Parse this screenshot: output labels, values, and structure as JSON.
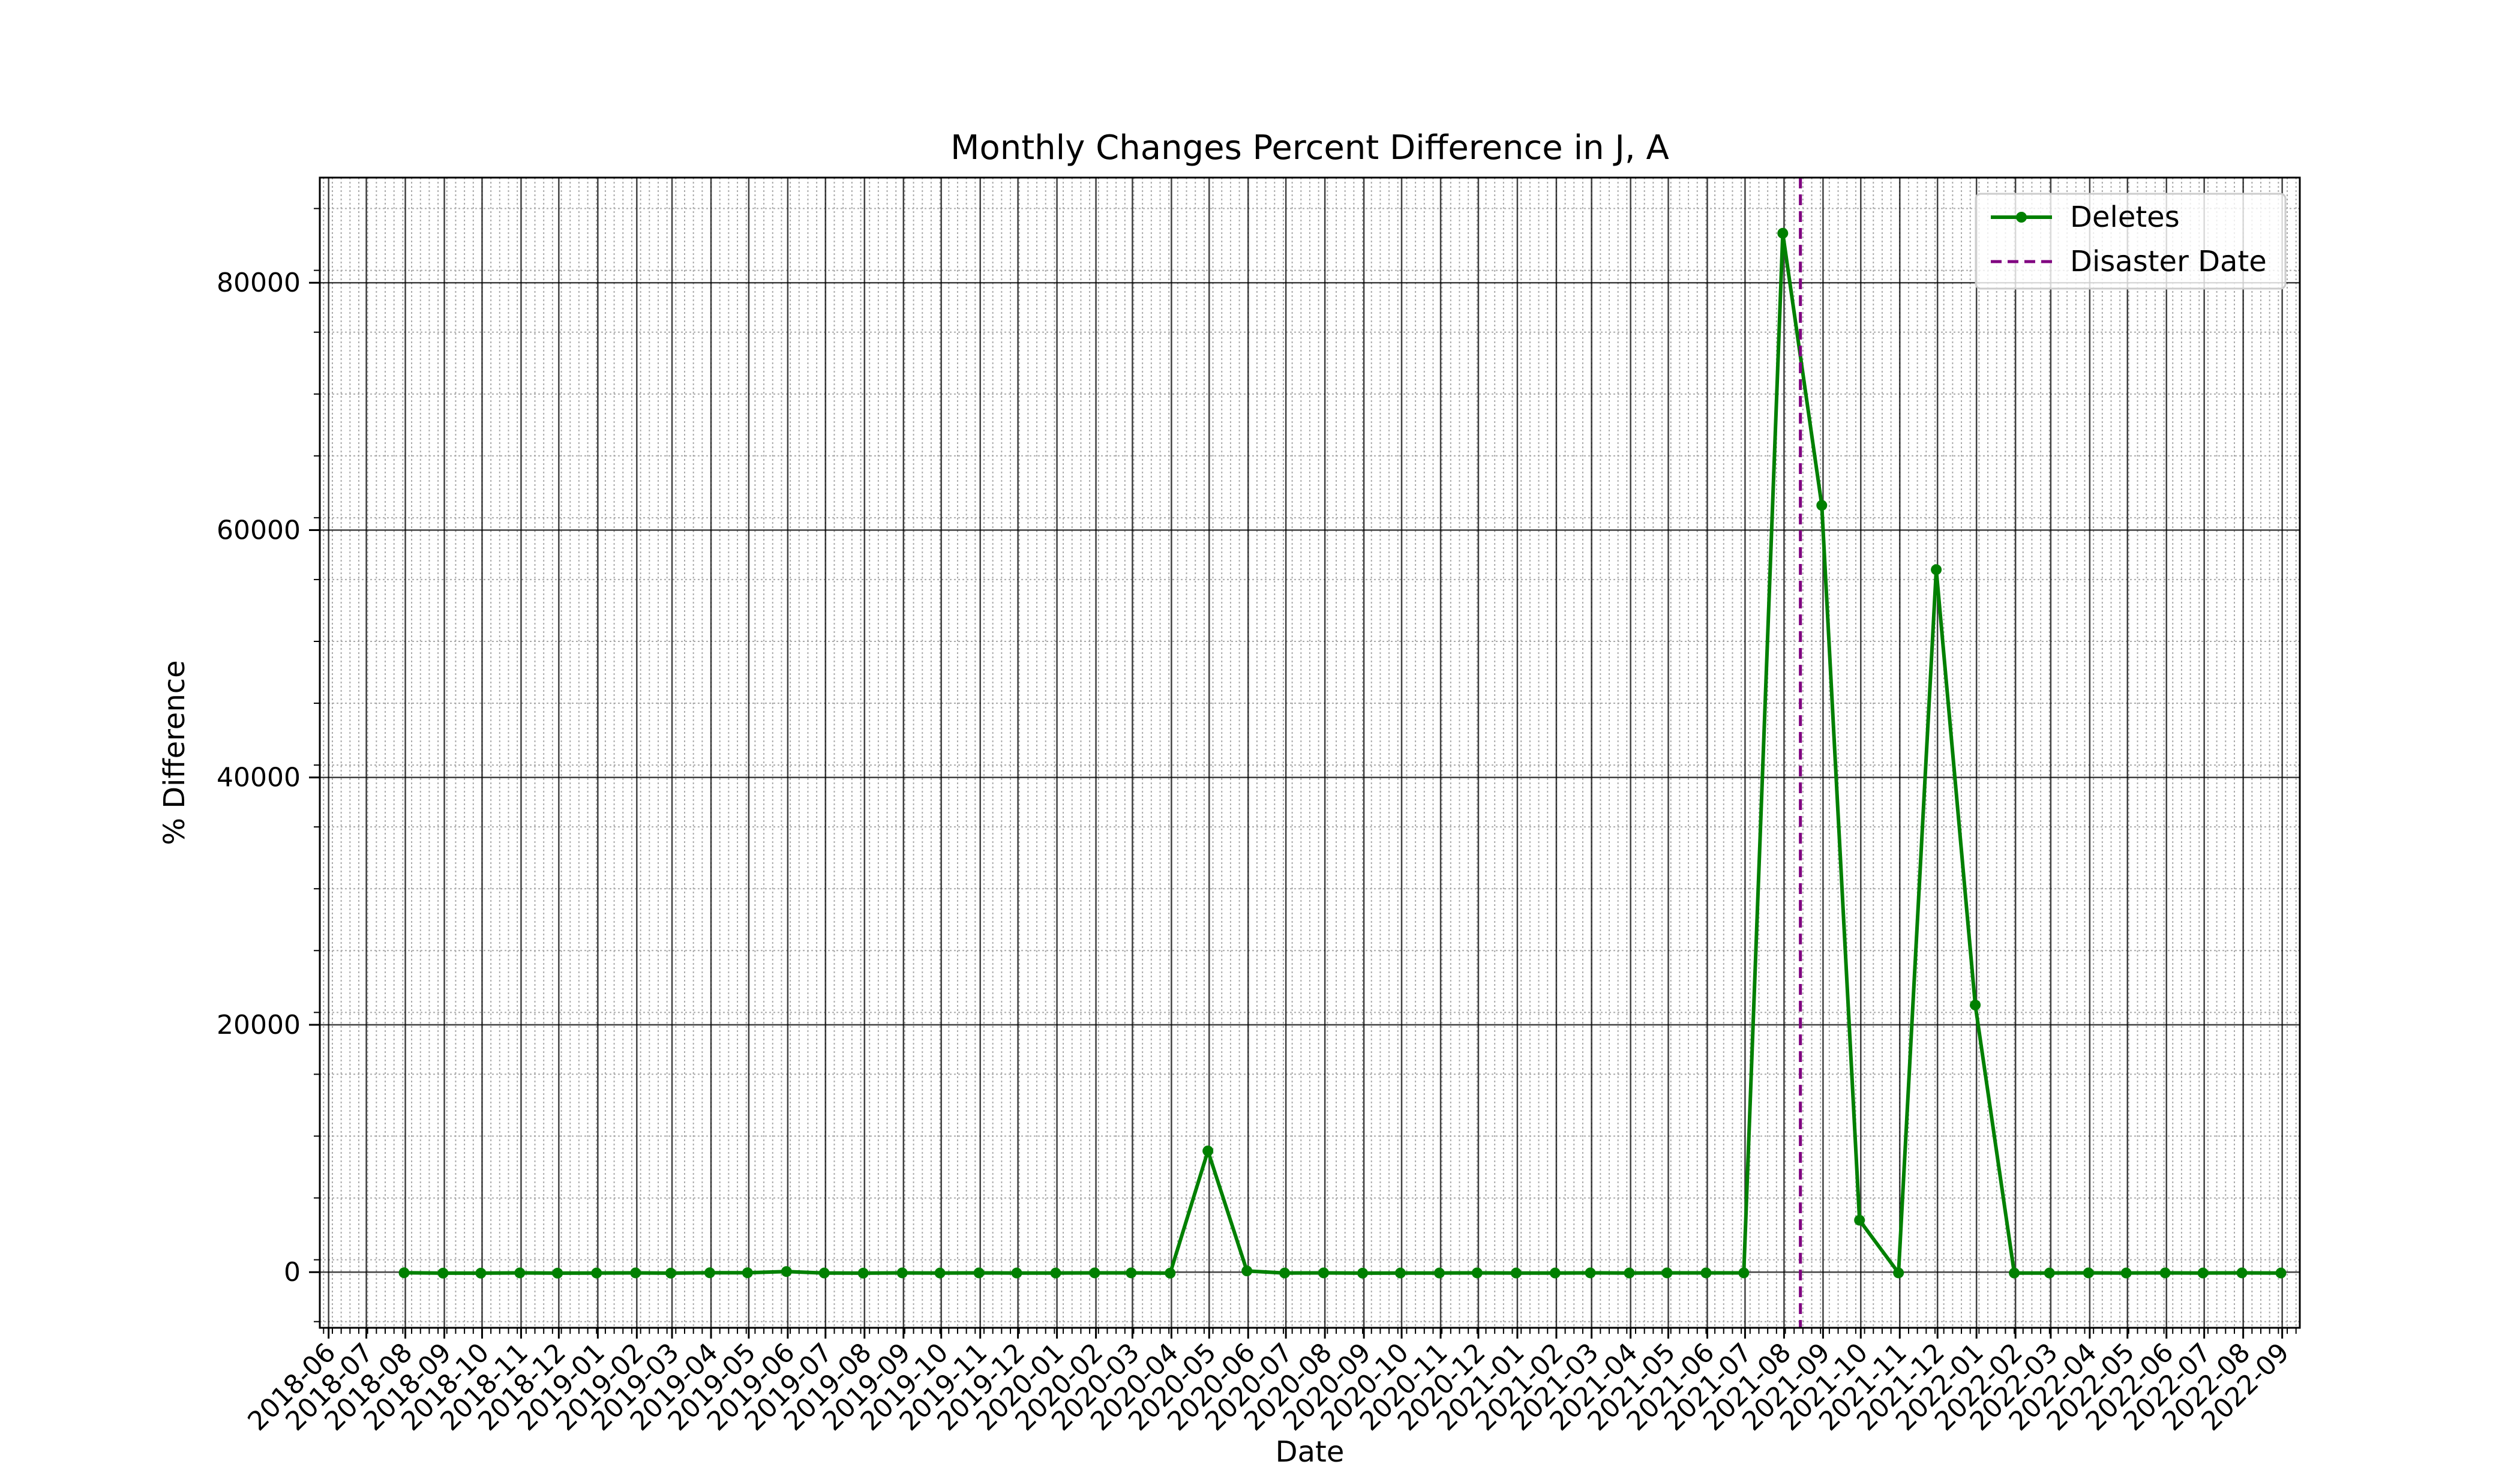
{
  "chart_data": {
    "type": "line",
    "title": "Monthly Changes Percent Difference in J, A",
    "xlabel": "Date",
    "ylabel": "% Difference",
    "x_tick_labels": [
      "2018-06",
      "2018-07",
      "2018-08",
      "2018-09",
      "2018-10",
      "2018-11",
      "2018-12",
      "2019-01",
      "2019-02",
      "2019-03",
      "2019-04",
      "2019-05",
      "2019-06",
      "2019-07",
      "2019-08",
      "2019-09",
      "2019-10",
      "2019-11",
      "2019-12",
      "2020-01",
      "2020-02",
      "2020-03",
      "2020-04",
      "2020-05",
      "2020-06",
      "2020-07",
      "2020-08",
      "2020-09",
      "2020-10",
      "2020-11",
      "2020-12",
      "2021-01",
      "2021-02",
      "2021-03",
      "2021-04",
      "2021-05",
      "2021-06",
      "2021-07",
      "2021-08",
      "2021-09",
      "2021-10",
      "2021-11",
      "2021-12",
      "2022-01",
      "2022-02",
      "2022-03",
      "2022-04",
      "2022-05",
      "2022-06",
      "2022-07",
      "2022-08",
      "2022-09"
    ],
    "y_ticks": [
      0,
      20000,
      40000,
      60000,
      80000
    ],
    "y_tick_labels": [
      "0",
      "20000",
      "40000",
      "60000",
      "80000"
    ],
    "xlim": [
      "2018-05-25",
      "2022-09-15"
    ],
    "ylim": [
      -4500,
      88500
    ],
    "grid": true,
    "legend_position": "top-right",
    "series": [
      {
        "name": "Deletes",
        "color": "#008000",
        "style": "solid-line-with-dots",
        "points": [
          {
            "x": "2018-07-31",
            "y": -50
          },
          {
            "x": "2018-08-31",
            "y": -80
          },
          {
            "x": "2018-09-30",
            "y": -80
          },
          {
            "x": "2018-10-31",
            "y": -60
          },
          {
            "x": "2018-11-30",
            "y": -80
          },
          {
            "x": "2018-12-31",
            "y": -70
          },
          {
            "x": "2019-01-31",
            "y": -60
          },
          {
            "x": "2019-02-28",
            "y": -80
          },
          {
            "x": "2019-03-31",
            "y": -50
          },
          {
            "x": "2019-04-30",
            "y": -50
          },
          {
            "x": "2019-05-31",
            "y": 50
          },
          {
            "x": "2019-06-30",
            "y": -70
          },
          {
            "x": "2019-07-31",
            "y": -80
          },
          {
            "x": "2019-08-31",
            "y": -60
          },
          {
            "x": "2019-09-30",
            "y": -70
          },
          {
            "x": "2019-10-31",
            "y": -60
          },
          {
            "x": "2019-11-30",
            "y": -70
          },
          {
            "x": "2019-12-31",
            "y": -70
          },
          {
            "x": "2020-01-31",
            "y": -60
          },
          {
            "x": "2020-02-29",
            "y": -60
          },
          {
            "x": "2020-03-31",
            "y": -80
          },
          {
            "x": "2020-04-30",
            "y": 9800
          },
          {
            "x": "2020-05-31",
            "y": 100
          },
          {
            "x": "2020-06-30",
            "y": -70
          },
          {
            "x": "2020-07-31",
            "y": -60
          },
          {
            "x": "2020-08-31",
            "y": -80
          },
          {
            "x": "2020-09-30",
            "y": -70
          },
          {
            "x": "2020-10-31",
            "y": -70
          },
          {
            "x": "2020-11-30",
            "y": -60
          },
          {
            "x": "2020-12-31",
            "y": -70
          },
          {
            "x": "2021-01-31",
            "y": -70
          },
          {
            "x": "2021-02-28",
            "y": -60
          },
          {
            "x": "2021-03-31",
            "y": -70
          },
          {
            "x": "2021-04-30",
            "y": -60
          },
          {
            "x": "2021-05-31",
            "y": -60
          },
          {
            "x": "2021-06-30",
            "y": -60
          },
          {
            "x": "2021-07-31",
            "y": 84000
          },
          {
            "x": "2021-08-31",
            "y": 62000
          },
          {
            "x": "2021-09-30",
            "y": 4200
          },
          {
            "x": "2021-10-31",
            "y": -60
          },
          {
            "x": "2021-11-30",
            "y": 56800
          },
          {
            "x": "2021-12-31",
            "y": 21600
          },
          {
            "x": "2022-01-31",
            "y": -70
          },
          {
            "x": "2022-02-28",
            "y": -70
          },
          {
            "x": "2022-03-31",
            "y": -60
          },
          {
            "x": "2022-04-30",
            "y": -70
          },
          {
            "x": "2022-05-31",
            "y": -60
          },
          {
            "x": "2022-06-30",
            "y": -70
          },
          {
            "x": "2022-07-31",
            "y": -60
          },
          {
            "x": "2022-08-31",
            "y": -70
          }
        ]
      }
    ],
    "vertical_lines": [
      {
        "name": "Disaster Date",
        "x": "2021-08-14",
        "color": "#800080",
        "style": "dashed"
      }
    ],
    "legend": [
      {
        "label": "Deletes",
        "color": "#008000",
        "style": "solid-line-with-dot"
      },
      {
        "label": "Disaster Date",
        "color": "#800080",
        "style": "dashed"
      }
    ]
  }
}
